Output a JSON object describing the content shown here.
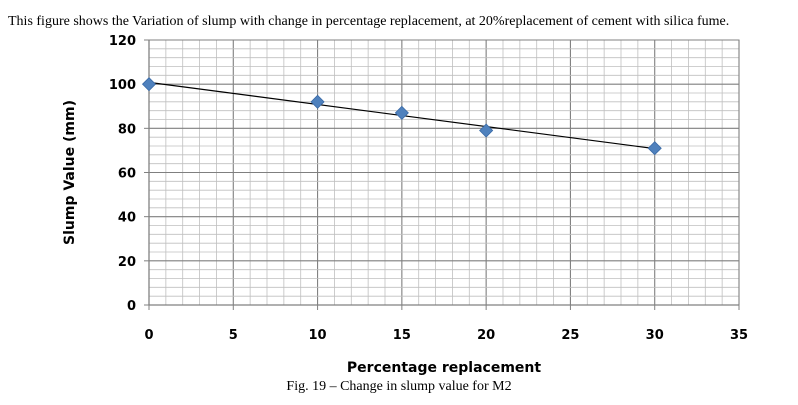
{
  "intro_text": "This figure shows the Variation of slump with change in percentage replacement, at 20%replacement of cement with silica fume.",
  "caption": "Fig. 19 – Change in slump value for M2",
  "chart_data": {
    "type": "scatter",
    "title": "",
    "xlabel": "Percentage replacement",
    "ylabel": "Slump Value (mm)",
    "xlim": [
      0,
      35
    ],
    "ylim": [
      0,
      120
    ],
    "xticks": [
      0,
      5,
      10,
      15,
      20,
      25,
      30,
      35
    ],
    "yticks": [
      0,
      20,
      40,
      60,
      80,
      100,
      120
    ],
    "grid": true,
    "legend": "none",
    "series": [
      {
        "x": [
          0,
          10,
          15,
          20,
          30
        ],
        "y": [
          100,
          92,
          87,
          79,
          71
        ],
        "marker": "diamond",
        "color": "#4f81bd"
      }
    ],
    "trendline": {
      "type": "linear",
      "color": "#000000"
    }
  }
}
